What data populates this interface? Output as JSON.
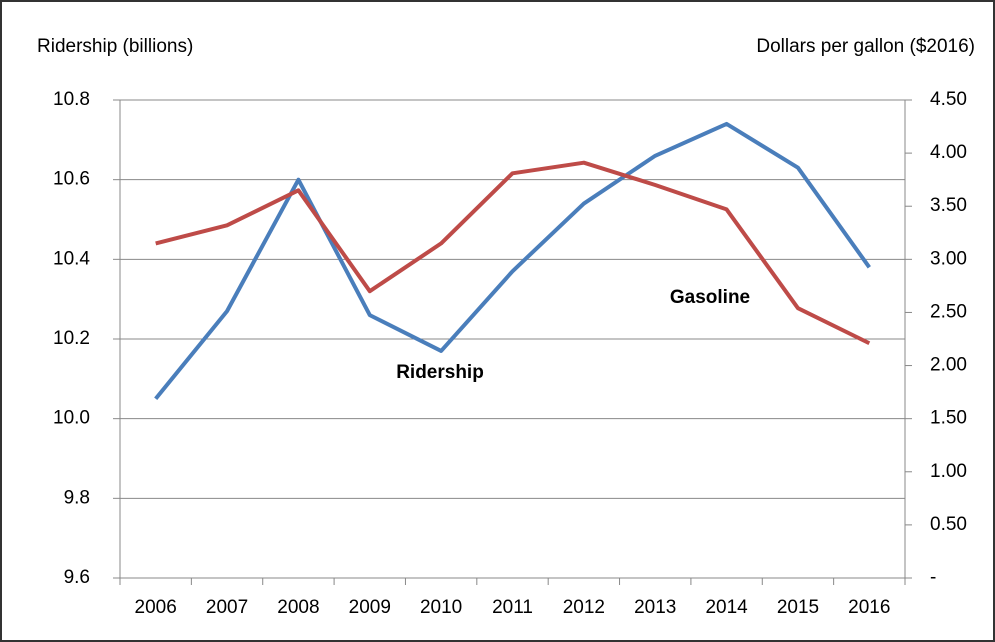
{
  "chart_data": {
    "type": "line",
    "y_label": "Ridership (billions)",
    "y2_label": "Dollars per gallon ($2016)",
    "categories": [
      "2006",
      "2007",
      "2008",
      "2009",
      "2010",
      "2011",
      "2012",
      "2013",
      "2014",
      "2015",
      "2016"
    ],
    "series": [
      {
        "name": "Ridership",
        "color": "#4a7ebb",
        "values": [
          10.05,
          10.27,
          10.6,
          10.26,
          10.17,
          10.37,
          10.54,
          10.66,
          10.74,
          10.63,
          10.38
        ]
      },
      {
        "name": "Gasoline",
        "color": "#be4b48",
        "axis": "y2",
        "values": [
          3.15,
          3.32,
          3.65,
          2.7,
          3.15,
          3.81,
          3.91,
          3.7,
          3.47,
          2.54,
          2.21
        ]
      }
    ],
    "ylim": [
      9.6,
      10.8
    ],
    "yticks": [
      9.6,
      9.8,
      {
        "value": 10.0,
        "label": "10.0"
      },
      10.2,
      10.4,
      10.6,
      10.8
    ],
    "y2lim": [
      0,
      4.5
    ],
    "y2ticks": [
      {
        "value": 0,
        "label": "-"
      },
      {
        "value": 0.5,
        "label": "0.50"
      },
      {
        "value": 1.0,
        "label": "1.00"
      },
      {
        "value": 1.5,
        "label": "1.50"
      },
      {
        "value": 2.0,
        "label": "2.00"
      },
      {
        "value": 2.5,
        "label": "2.50"
      },
      {
        "value": 3.0,
        "label": "3.00"
      },
      {
        "value": 3.5,
        "label": "3.50"
      },
      {
        "value": 4.0,
        "label": "4.00"
      },
      {
        "value": 4.5,
        "label": "4.50"
      }
    ],
    "grid": true
  }
}
